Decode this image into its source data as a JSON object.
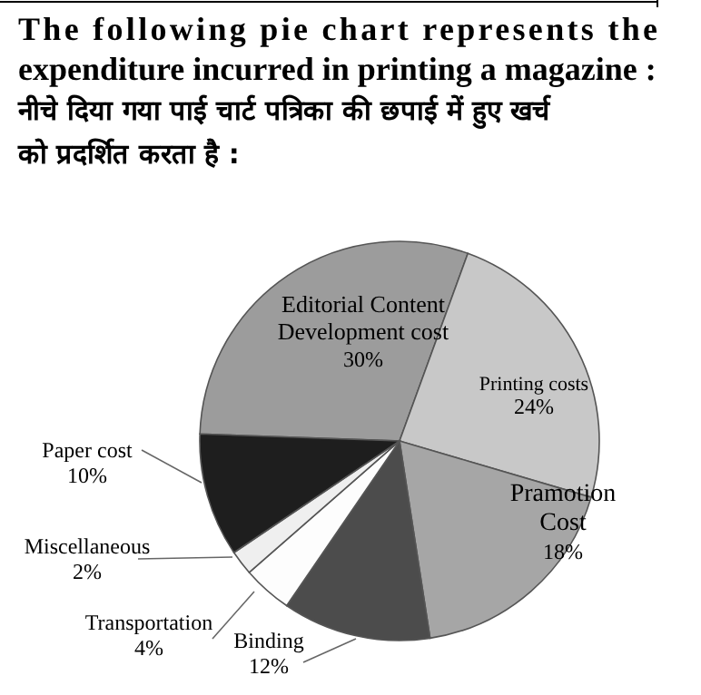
{
  "chart_data": {
    "type": "pie",
    "title": "The following pie chart represents the expenditure incurred in printing a magazine :",
    "subtitle": "नीचे दिया गया पाई चार्ट पत्रिका की छपाई में हुए खर्च को प्रदर्शित करता है :",
    "categories": [
      "Editorial Content Development cost",
      "Printing costs",
      "Pramotion Cost",
      "Binding",
      "Transportation",
      "Miscellaneous",
      "Paper cost"
    ],
    "values": [
      30,
      24,
      18,
      12,
      4,
      2,
      10
    ],
    "colors": [
      "#9c9c9c",
      "#c8c8c8",
      "#a6a6a6",
      "#4c4c4c",
      "#fdfdfd",
      "#efefef",
      "#1e1e1e"
    ],
    "value_labels": [
      "30%",
      "24%",
      "18%",
      "12%",
      "4%",
      "2%",
      "10%"
    ]
  }
}
